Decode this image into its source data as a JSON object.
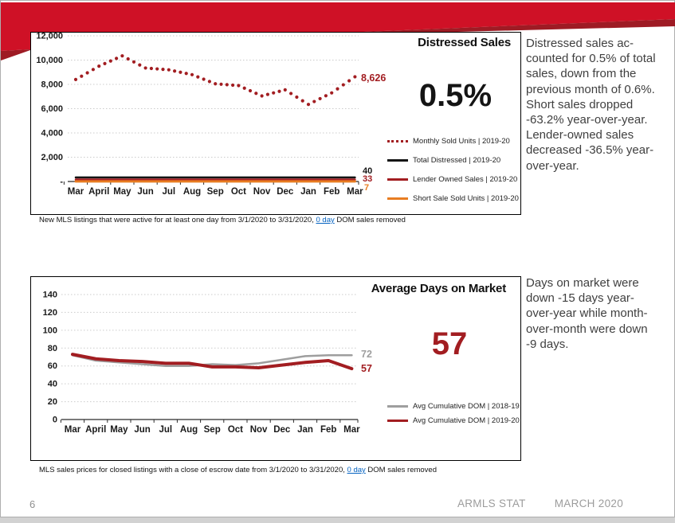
{
  "slide": {
    "page_number": "6",
    "footer_brand": "ARMLS STAT",
    "footer_month": "MARCH 2020"
  },
  "colors": {
    "banner_red": "#cf1126",
    "banner_dark_red": "#9e1b24",
    "dark_red": "#a21d21",
    "orange": "#e87d22",
    "gray_line": "#9e9e9e",
    "black_line": "#141414",
    "link_blue": "#0563c1"
  },
  "chart_data": [
    {
      "type": "line",
      "title": "Distressed Sales",
      "big_value": "0.5%",
      "categories": [
        "Mar",
        "April",
        "May",
        "Jun",
        "Jul",
        "Aug",
        "Sep",
        "Oct",
        "Nov",
        "Dec",
        "Jan",
        "Feb",
        "Mar"
      ],
      "y_axis": {
        "min": 0,
        "max": 12000,
        "step": 2000,
        "tick_labels": [
          "-",
          "2,000",
          "4,000",
          "6,000",
          "8,000",
          "10,000",
          "12,000"
        ]
      },
      "legend_position": "right-inside",
      "grid": true,
      "series": [
        {
          "name": "Monthly Sold Units | 2019-20",
          "style": "dotted",
          "color": "#a21d21",
          "values": [
            8400,
            9500,
            10350,
            9350,
            9200,
            8800,
            8050,
            7900,
            7050,
            7550,
            6350,
            7300,
            8626
          ],
          "end_label": "8,626"
        },
        {
          "name": "Total Distressed | 2019-20",
          "style": "solid",
          "color": "#141414",
          "values": [
            40,
            40,
            40,
            40,
            40,
            40,
            40,
            40,
            40,
            40,
            40,
            40,
            40
          ],
          "end_label": "40"
        },
        {
          "name": "Lender Owned Sales | 2019-20",
          "style": "solid",
          "color": "#a21d21",
          "values": [
            33,
            33,
            33,
            33,
            33,
            33,
            33,
            33,
            33,
            33,
            33,
            33,
            33
          ],
          "end_label": "33"
        },
        {
          "name": "Short Sale Sold Units | 2019-20",
          "style": "solid",
          "color": "#e87d22",
          "values": [
            7,
            7,
            7,
            7,
            7,
            7,
            7,
            7,
            7,
            7,
            7,
            7,
            7
          ],
          "end_label": "7"
        }
      ],
      "footnote": {
        "pre": "New MLS listings that were active for at least one day from 3/1/2020 to 3/31/2020, ",
        "link": "0 day",
        "post": " DOM sales removed"
      },
      "annotation": "Distressed sales ac-\ncounted for 0.5% of total\nsales, down from the\nprevious month of 0.6%.\nShort sales dropped\n-63.2% year-over-year.\nLender-owned sales\ndecreased -36.5% year-\nover-year."
    },
    {
      "type": "line",
      "title": "Average Days on Market",
      "big_value": "57",
      "categories": [
        "Mar",
        "April",
        "May",
        "Jun",
        "Jul",
        "Aug",
        "Sep",
        "Oct",
        "Nov",
        "Dec",
        "Jan",
        "Feb",
        "Mar"
      ],
      "y_axis": {
        "min": 0,
        "max": 140,
        "step": 20,
        "tick_labels": [
          "0",
          "20",
          "40",
          "60",
          "80",
          "100",
          "120",
          "140"
        ]
      },
      "legend_position": "right-inside",
      "grid": true,
      "series": [
        {
          "name": "Avg Cumulative DOM | 2018-19",
          "style": "solid",
          "color": "#9e9e9e",
          "values": [
            72,
            66,
            64,
            62,
            60,
            60,
            62,
            61,
            63,
            67,
            71,
            72,
            72
          ],
          "end_label": "72"
        },
        {
          "name": "Avg Cumulative DOM | 2019-20",
          "style": "solid",
          "color": "#a21d21",
          "values": [
            73,
            68,
            66,
            65,
            63,
            63,
            59,
            59,
            58,
            61,
            64,
            66,
            57
          ],
          "end_label": "57"
        }
      ],
      "footnote": {
        "pre": "MLS sales prices for closed listings with a close of escrow date from 3/1/2020 to 3/31/2020, ",
        "link": "0 day",
        "post": " DOM sales removed"
      },
      "annotation": "Days on market were\ndown -15 days year-\nover-year while month-\nover-month were down\n-9 days."
    }
  ]
}
